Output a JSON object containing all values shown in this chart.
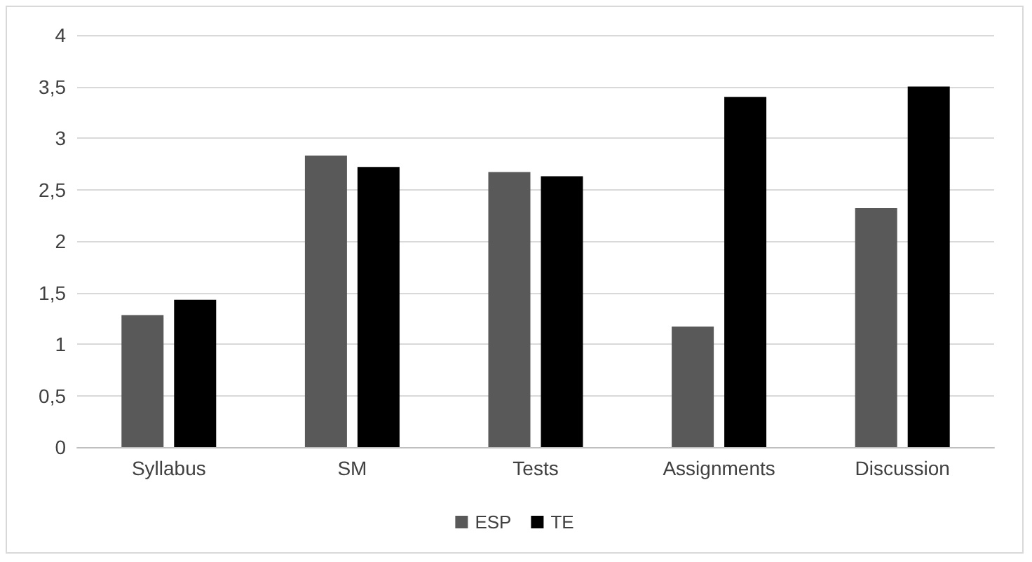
{
  "chart_data": {
    "type": "bar",
    "categories": [
      "Syllabus",
      "SM",
      "Tests",
      "Assignments",
      "Discussion"
    ],
    "series": [
      {
        "name": "ESP",
        "color": "#595959",
        "values": [
          1.28,
          2.83,
          2.67,
          1.17,
          2.32
        ]
      },
      {
        "name": "TE",
        "color": "#000000",
        "values": [
          1.43,
          2.72,
          2.63,
          3.4,
          3.5
        ]
      }
    ],
    "ylim": [
      0,
      4
    ],
    "yticks": [
      0,
      {
        "value": 0.5,
        "label": "0,5"
      },
      1,
      {
        "value": 1.5,
        "label": "1,5"
      },
      2,
      {
        "value": 2.5,
        "label": "2,5"
      },
      3,
      {
        "value": 3.5,
        "label": "3,5"
      },
      4
    ],
    "grid": "y",
    "legend": "bottom"
  }
}
